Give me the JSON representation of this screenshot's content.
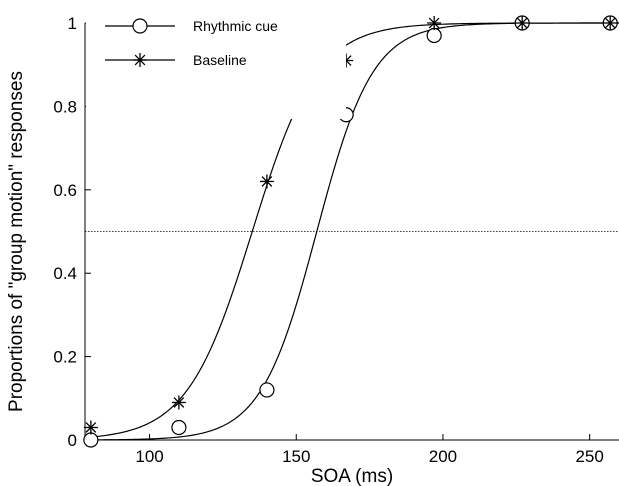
{
  "chart_data": {
    "type": "scatter",
    "title": "",
    "xlabel": "SOA (ms)",
    "ylabel": "Proportions of \"group motion\" responses",
    "xlim": [
      78,
      260
    ],
    "ylim": [
      0,
      1
    ],
    "xticks": [
      100,
      150,
      200,
      250
    ],
    "xtick_labels": [
      "100",
      "150",
      "200",
      "250"
    ],
    "yticks": [
      0,
      0.2,
      0.4,
      0.6,
      0.8,
      1
    ],
    "ytick_labels": [
      "0",
      "0.2",
      "0.4",
      "0.6",
      "0.8",
      "1"
    ],
    "reference_line": {
      "y": 0.5,
      "style": "dotted"
    },
    "legend": {
      "position": "top-left"
    },
    "grid": false,
    "series": [
      {
        "name": "Rhythmic cue",
        "marker": "circle",
        "points": [
          {
            "x": 80,
            "y": 0.0
          },
          {
            "x": 110,
            "y": 0.03
          },
          {
            "x": 140,
            "y": 0.12
          },
          {
            "x": 167,
            "y": 0.78
          },
          {
            "x": 197,
            "y": 0.97
          },
          {
            "x": 227,
            "y": 1.0
          },
          {
            "x": 257,
            "y": 1.0
          }
        ],
        "fit": {
          "kind": "logistic",
          "midpoint": 157,
          "slope": 0.105
        }
      },
      {
        "name": "Baseline",
        "marker": "asterisk",
        "points": [
          {
            "x": 80,
            "y": 0.03
          },
          {
            "x": 110,
            "y": 0.09
          },
          {
            "x": 140,
            "y": 0.62
          },
          {
            "x": 167,
            "y": 0.91
          },
          {
            "x": 197,
            "y": 1.0
          },
          {
            "x": 227,
            "y": 1.0
          },
          {
            "x": 257,
            "y": 1.0
          }
        ],
        "fit": {
          "kind": "logistic",
          "midpoint": 135,
          "slope": 0.09
        }
      }
    ]
  }
}
